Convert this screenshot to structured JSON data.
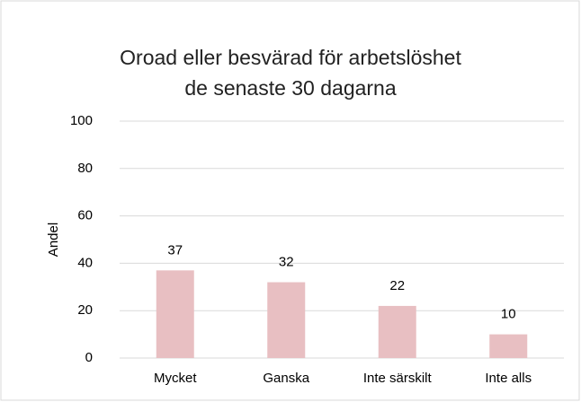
{
  "chart_data": {
    "type": "bar",
    "title": [
      "Oroad eller besvärad för arbetslöshet",
      "de senaste 30 dagarna"
    ],
    "y_label": "Andel",
    "categories": [
      "Mycket",
      "Ganska",
      "Inte särskilt",
      "Inte alls"
    ],
    "values": [
      37,
      32,
      22,
      10
    ],
    "color": "#e8bfc2",
    "ylim": [
      0,
      100
    ],
    "yticks": [
      0,
      20,
      40,
      60,
      80,
      100
    ],
    "grid": true,
    "data_labels": true
  }
}
